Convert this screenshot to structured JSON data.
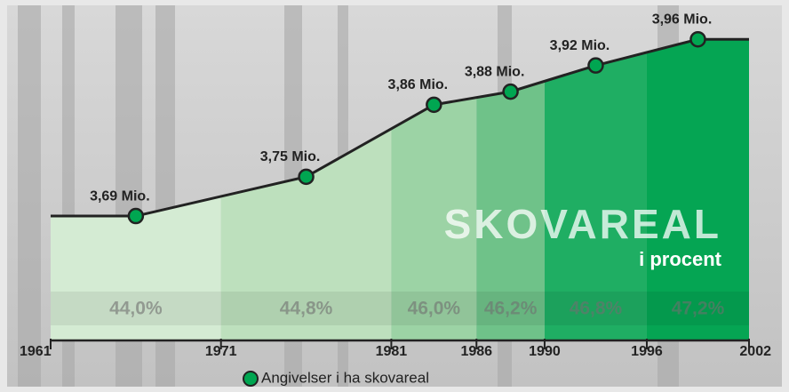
{
  "chart_data": {
    "type": "line",
    "title": "SKOVAREAL",
    "subtitle": "i procent",
    "xlim": [
      1961,
      2002
    ],
    "xticks": [
      1961,
      1971,
      1981,
      1986,
      1990,
      1996,
      2002
    ],
    "ylim": [
      3.5,
      4.02
    ],
    "series": [
      {
        "name": "Angivelser i ha skovareal",
        "color": "#00a651",
        "x": [
          1966,
          1976,
          1983.5,
          1988,
          1993,
          1999
        ],
        "values": [
          3.69,
          3.75,
          3.86,
          3.88,
          3.92,
          3.96
        ],
        "value_labels": [
          "3,69 Mio.",
          "3,75 Mio.",
          "3,86 Mio.",
          "3,88 Mio.",
          "3,92 Mio.",
          "3,96 Mio."
        ]
      }
    ],
    "periods": [
      {
        "start": 1961,
        "end": 1971,
        "value": 44.0,
        "label": "44,0%",
        "color": "#d4ebd3"
      },
      {
        "start": 1971,
        "end": 1981,
        "value": 44.8,
        "label": "44,8%",
        "color": "#bde0bd"
      },
      {
        "start": 1981,
        "end": 1986,
        "value": 46.0,
        "label": "46,0%",
        "color": "#9cd3a5"
      },
      {
        "start": 1986,
        "end": 1990,
        "value": 46.2,
        "label": "46,2%",
        "color": "#6fc289"
      },
      {
        "start": 1990,
        "end": 1996,
        "value": 46.8,
        "label": "46,8%",
        "color": "#1fae63"
      },
      {
        "start": 1996,
        "end": 2002,
        "value": 47.2,
        "label": "47,2%",
        "color": "#05a553"
      }
    ]
  }
}
